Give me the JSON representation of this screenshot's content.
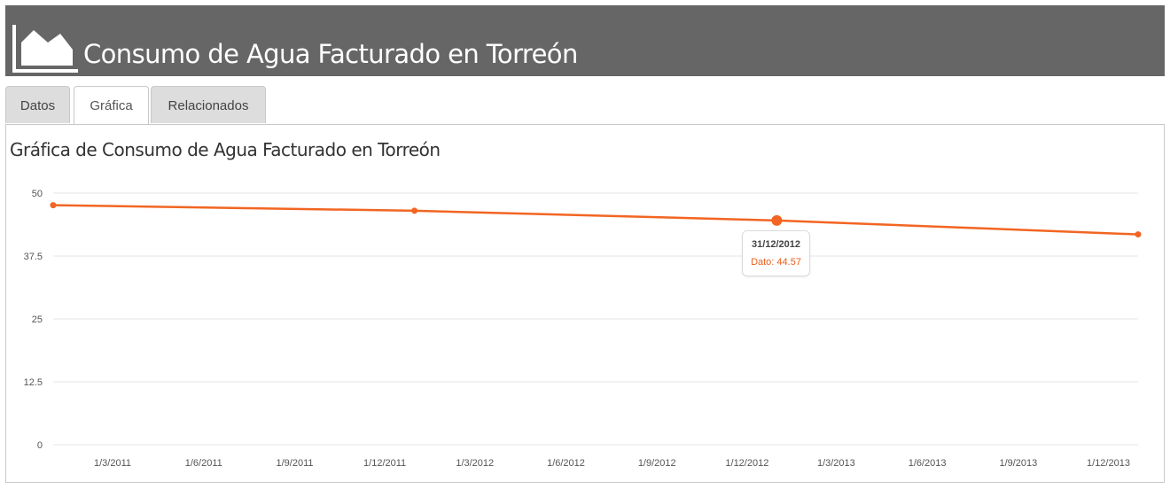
{
  "header": {
    "title": "Consumo de Agua Facturado en Torreón",
    "icon": "area-chart-icon"
  },
  "tabs": [
    {
      "label": "Datos",
      "active": false
    },
    {
      "label": "Gráfica",
      "active": true
    },
    {
      "label": "Relacionados",
      "active": false
    }
  ],
  "colors": {
    "header_bg": "#666666",
    "series": "#f26522",
    "grid": "#e6e6e6"
  },
  "tooltip": {
    "date": "31/12/2012",
    "label": "Dato: 44.57"
  },
  "chart_data": {
    "type": "line",
    "title": "Gráfica de Consumo de Agua Facturado en Torreón",
    "xlabel": "",
    "ylabel": "",
    "ylim": [
      0,
      50
    ],
    "yticks": [
      "0",
      "12.5",
      "25",
      "37.5",
      "50"
    ],
    "xlim": [
      "2010-12-31",
      "2013-12-31"
    ],
    "xticks": [
      "1/3/2011",
      "1/6/2011",
      "1/9/2011",
      "1/12/2011",
      "1/3/2012",
      "1/6/2012",
      "1/9/2012",
      "1/12/2012",
      "1/3/2013",
      "1/6/2013",
      "1/9/2013",
      "1/12/2013"
    ],
    "grid": true,
    "series": [
      {
        "x": [
          "2010-12-31",
          "2011-12-31",
          "2012-12-31",
          "2013-12-31"
        ],
        "values": [
          47.6,
          46.5,
          44.57,
          41.8
        ]
      }
    ],
    "highlighted_point": 2
  }
}
